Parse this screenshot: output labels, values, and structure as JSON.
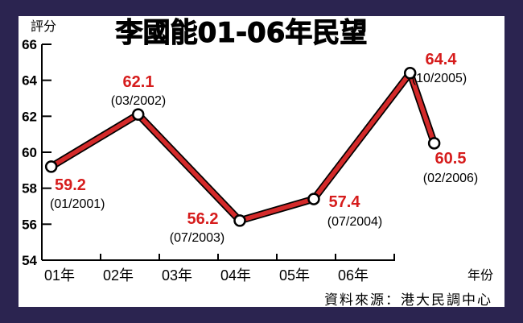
{
  "colors": {
    "frame": "#2b2450",
    "line": "#d42a2a",
    "value_text": "#d61c1c"
  },
  "chart_data": {
    "type": "line",
    "title": "李國能01-06年民望",
    "ylabel": "評分",
    "xlabel": "年份",
    "ylim": [
      54,
      66
    ],
    "yticks": [
      "54",
      "56",
      "58",
      "60",
      "62",
      "64",
      "66"
    ],
    "xticks": [
      "01年",
      "02年",
      "03年",
      "04年",
      "05年",
      "06年"
    ],
    "source": "資料來源：港大民調中心",
    "points": [
      {
        "date": "(01/2001)",
        "value": 59.2,
        "value_label": "59.2",
        "x": 0.16
      },
      {
        "date": "(03/2002)",
        "value": 62.1,
        "value_label": "62.1",
        "x": 1.64
      },
      {
        "date": "(07/2003)",
        "value": 56.2,
        "value_label": "56.2",
        "x": 3.37
      },
      {
        "date": "(07/2004)",
        "value": 57.4,
        "value_label": "57.4",
        "x": 4.63
      },
      {
        "date": "(10/2005)",
        "value": 64.4,
        "value_label": "64.4",
        "x": 6.27
      },
      {
        "date": "(02/2006)",
        "value": 60.5,
        "value_label": "60.5",
        "x": 6.68
      }
    ]
  }
}
